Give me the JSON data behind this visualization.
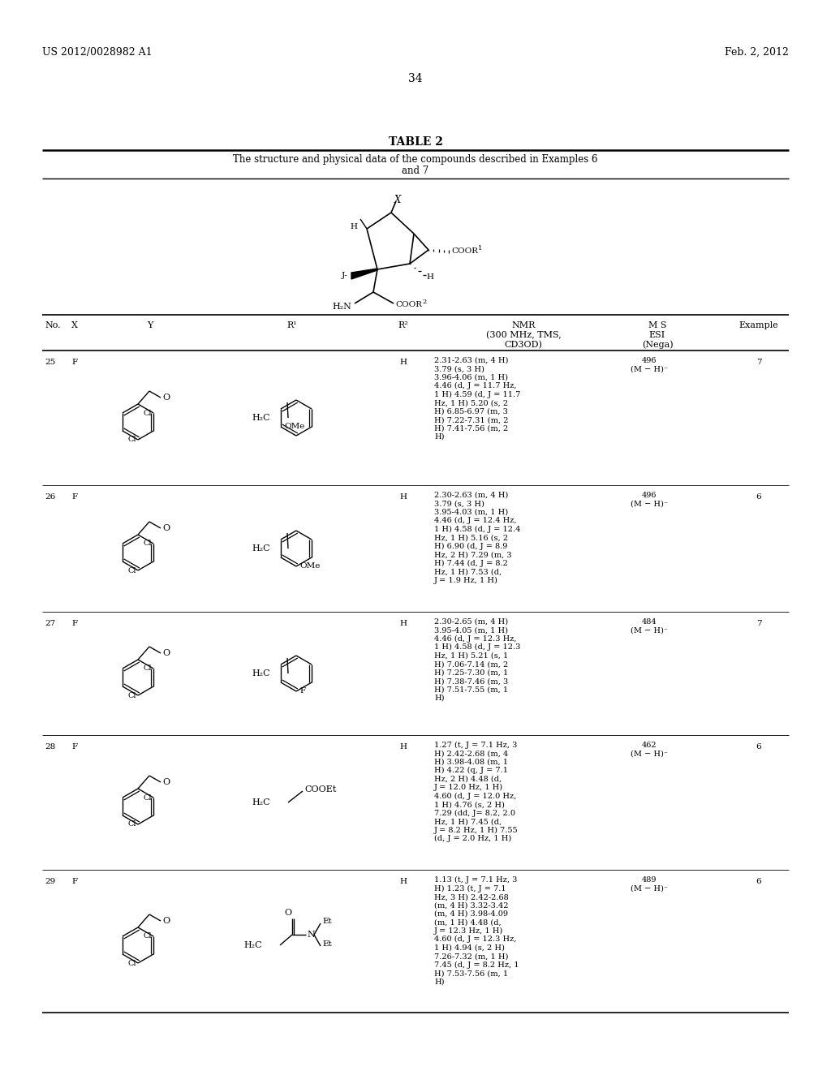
{
  "title_left": "US 2012/0028982 A1",
  "title_right": "Feb. 2, 2012",
  "page_number": "34",
  "table_title": "TABLE 2",
  "table_subtitle1": "The structure and physical data of the compounds described in Examples 6",
  "table_subtitle2": "and 7",
  "background_color": "#ffffff",
  "rows": [
    {
      "no": "25",
      "x": "F",
      "r1_type": "benzyl_OMe",
      "r1_sub": "OMe",
      "r1_sub_pos": "meta",
      "r2": "H",
      "ms": "496\n(M − H)⁻",
      "example": "7",
      "nmr": "2.31-2.63 (m, 4 H)\n3.79 (s, 3 H)\n3.96-4.06 (m, 1 H)\n4.46 (d, J = 11.7 Hz,\n1 H) 4.59 (d, J = 11.7\nHz, 1 H) 5.20 (s, 2\nH) 6.85-6.97 (m, 3\nH) 7.22-7.31 (m, 2\nH) 7.41-7.56 (m, 2\nH)"
    },
    {
      "no": "26",
      "x": "F",
      "r1_type": "benzyl_OMe",
      "r1_sub": "OMe",
      "r1_sub_pos": "para",
      "r2": "H",
      "ms": "496\n(M − H)⁻",
      "example": "6",
      "nmr": "2.30-2.63 (m, 4 H)\n3.79 (s, 3 H)\n3.95-4.03 (m, 1 H)\n4.46 (d, J = 12.4 Hz,\n1 H) 4.58 (d, J = 12.4\nHz, 1 H) 5.16 (s, 2\nH) 6.90 (d, J = 8.9\nHz, 2 H) 7.29 (m, 3\nH) 7.44 (d, J = 8.2\nHz, 1 H) 7.53 (d,\nJ = 1.9 Hz, 1 H)"
    },
    {
      "no": "27",
      "x": "F",
      "r1_type": "benzyl_F",
      "r1_sub": "F",
      "r1_sub_pos": "para",
      "r2": "H",
      "ms": "484\n(M − H)⁻",
      "example": "7",
      "nmr": "2.30-2.65 (m, 4 H)\n3.95-4.05 (m, 1 H)\n4.46 (d, J = 12.3 Hz,\n1 H) 4.58 (d, J = 12.3\nHz, 1 H) 5.21 (s, 1\nH) 7.06-7.14 (m, 2\nH) 7.25-7.30 (m, 1\nH) 7.38-7.46 (m, 3\nH) 7.51-7.55 (m, 1\nH)"
    },
    {
      "no": "28",
      "x": "F",
      "r1_type": "CH2COOEt",
      "r2": "H",
      "ms": "462\n(M − H)⁻",
      "example": "6",
      "nmr": "1.27 (t, J = 7.1 Hz, 3\nH) 2.42-2.68 (m, 4\nH) 3.98-4.08 (m, 1\nH) 4.22 (q, J = 7.1\nHz, 2 H) 4.48 (d,\nJ = 12.0 Hz, 1 H)\n4.60 (d, J = 12.0 Hz,\n1 H) 4.76 (s, 2 H)\n7.29 (dd, J= 8.2, 2.0\nHz, 1 H) 7.45 (d,\nJ = 8.2 Hz, 1 H) 7.55\n(d, J = 2.0 Hz, 1 H)"
    },
    {
      "no": "29",
      "x": "F",
      "r1_type": "CH2CONEt2",
      "r2": "H",
      "ms": "489\n(M − H)⁻",
      "example": "6",
      "nmr": "1.13 (t, J = 7.1 Hz, 3\nH) 1.23 (t, J = 7.1\nHz, 3 H) 2.42-2.68\n(m, 4 H) 3.32-3.42\n(m, 4 H) 3.98-4.09\n(m, 1 H) 4.48 (d,\nJ = 12.3 Hz, 1 H)\n4.60 (d, J = 12.3 Hz,\n1 H) 4.94 (s, 2 H)\n7.26-7.32 (m, 1 H)\n7.45 (d, J = 8.2 Hz, 1\nH) 7.53-7.56 (m, 1\nH)"
    }
  ]
}
